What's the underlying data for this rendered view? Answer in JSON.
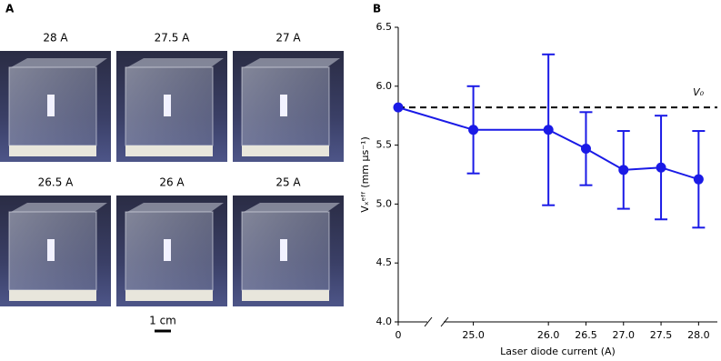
{
  "panel_a": {
    "label": "A",
    "photos": [
      "28 A",
      "27.5 A",
      "27 A",
      "26.5 A",
      "26 A",
      "25 A"
    ],
    "scale_bar": "1 cm"
  },
  "chart_data": {
    "type": "errorbar",
    "panel_label": "B",
    "x_label": "Laser diode current (A)",
    "y_label": "Vₓᵉᶠᶠ (mm µs⁻¹)",
    "x": [
      0,
      25,
      26,
      26.5,
      27,
      27.5,
      28
    ],
    "series": [
      {
        "color": "#1a1ae6",
        "values": [
          5.82,
          5.63,
          5.63,
          5.47,
          5.29,
          5.31,
          5.21
        ],
        "errors": [
          0,
          0.37,
          0.64,
          0.31,
          0.33,
          0.44,
          0.41
        ]
      }
    ],
    "reference_line": {
      "value": 5.82,
      "label": "V₀",
      "style": "dashed",
      "color": "#000000"
    },
    "xlim": [
      0,
      28.25
    ],
    "x_break": [
      0,
      24
    ],
    "xticks": [
      0,
      {
        "value": 25,
        "label": "25.0"
      },
      {
        "value": 26,
        "label": "26.0"
      },
      26.5,
      {
        "value": 27,
        "label": "27.0"
      },
      27.5,
      {
        "value": 28,
        "label": "28.0"
      }
    ],
    "ylim": [
      4,
      6.5
    ],
    "yticks": [
      {
        "value": 4,
        "label": "4.0"
      },
      4.5,
      {
        "value": 5,
        "label": "5.0"
      },
      5.5,
      {
        "value": 6,
        "label": "6.0"
      },
      6.5
    ],
    "grid": false
  }
}
